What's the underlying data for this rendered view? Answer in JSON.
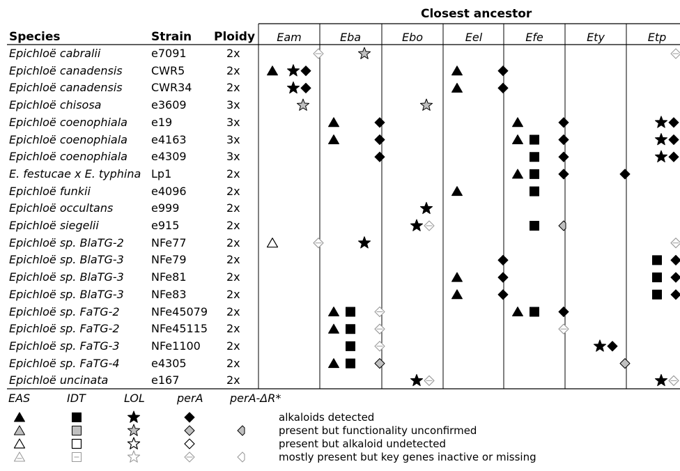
{
  "header": {
    "group_title": "Closest ancestor",
    "species_label": "Species",
    "strain_label": "Strain",
    "ploidy_label": "Ploidy"
  },
  "ancestors": [
    "Eam",
    "Eba",
    "Ebo",
    "Eel",
    "Efe",
    "Ety",
    "Etp"
  ],
  "rows": [
    {
      "species": "Epichloë cabralii",
      "strain": "e7091",
      "ploidy": "2x",
      "cells": {
        "Eam": [
          {
            "t": "diamond",
            "s": "m"
          }
        ],
        "Eba": [
          {
            "t": "star",
            "s": "u"
          }
        ],
        "Etp": [
          {
            "t": "diamond",
            "s": "m"
          }
        ]
      }
    },
    {
      "species": "Epichloë canadensis",
      "strain": "CWR5",
      "ploidy": "2x",
      "cells": {
        "Eam": [
          {
            "t": "tri",
            "s": "d"
          },
          {
            "t": "star",
            "s": "d"
          },
          {
            "t": "diamond",
            "s": "d"
          }
        ],
        "Eel": [
          {
            "t": "tri",
            "s": "d"
          },
          {
            "t": "diamond",
            "s": "d"
          }
        ]
      }
    },
    {
      "species": "Epichloë canadensis",
      "strain": "CWR34",
      "ploidy": "2x",
      "cells": {
        "Eam": [
          {
            "t": "star",
            "s": "d"
          },
          {
            "t": "diamond",
            "s": "d"
          }
        ],
        "Eel": [
          {
            "t": "tri",
            "s": "d"
          },
          {
            "t": "diamond",
            "s": "d"
          }
        ]
      }
    },
    {
      "species": "Epichloë chisosa",
      "strain": "e3609",
      "ploidy": "3x",
      "cells": {
        "Eam": [
          {
            "t": "star",
            "s": "u"
          }
        ],
        "Ebo": [
          {
            "t": "star",
            "s": "u"
          }
        ]
      }
    },
    {
      "species": "Epichloë coenophiala",
      "strain": "e19",
      "ploidy": "3x",
      "cells": {
        "Eba": [
          {
            "t": "tri",
            "s": "d"
          },
          {
            "t": "diamond",
            "s": "d"
          }
        ],
        "Efe": [
          {
            "t": "tri",
            "s": "d"
          },
          {
            "t": "diamond",
            "s": "d"
          }
        ],
        "Etp": [
          {
            "t": "star",
            "s": "d"
          },
          {
            "t": "diamond",
            "s": "d"
          }
        ]
      }
    },
    {
      "species": "Epichloë coenophiala",
      "strain": "e4163",
      "ploidy": "3x",
      "cells": {
        "Eba": [
          {
            "t": "tri",
            "s": "d"
          },
          {
            "t": "diamond",
            "s": "d"
          }
        ],
        "Efe": [
          {
            "t": "tri",
            "s": "d"
          },
          {
            "t": "sq",
            "s": "d"
          },
          {
            "t": "diamond",
            "s": "d"
          }
        ],
        "Etp": [
          {
            "t": "star",
            "s": "d"
          },
          {
            "t": "diamond",
            "s": "d"
          }
        ]
      }
    },
    {
      "species": "Epichloë coenophiala",
      "strain": "e4309",
      "ploidy": "3x",
      "cells": {
        "Eba": [
          {
            "t": "diamond",
            "s": "d"
          }
        ],
        "Efe": [
          {
            "t": "sq",
            "s": "d"
          },
          {
            "t": "diamond",
            "s": "d"
          }
        ],
        "Etp": [
          {
            "t": "star",
            "s": "d"
          },
          {
            "t": "diamond",
            "s": "d"
          }
        ]
      }
    },
    {
      "species": "E. festucae x E. typhina",
      "strain": "Lp1",
      "ploidy": "2x",
      "cells": {
        "Efe": [
          {
            "t": "tri",
            "s": "d"
          },
          {
            "t": "sq",
            "s": "d"
          },
          {
            "t": "diamond",
            "s": "d"
          }
        ],
        "Ety": [
          {
            "t": "diamond",
            "s": "d"
          }
        ]
      }
    },
    {
      "species": "Epichloë funkii",
      "strain": "e4096",
      "ploidy": "2x",
      "cells": {
        "Eel": [
          {
            "t": "tri",
            "s": "d"
          }
        ],
        "Efe": [
          {
            "t": "sq",
            "s": "d"
          }
        ]
      }
    },
    {
      "species": "Epichloë occultans",
      "strain": "e999",
      "ploidy": "2x",
      "cells": {
        "Ebo": [
          {
            "t": "star",
            "s": "d"
          }
        ]
      }
    },
    {
      "species": "Epichloë siegelii",
      "strain": "e915",
      "ploidy": "2x",
      "cells": {
        "Ebo": [
          {
            "t": "star",
            "s": "d"
          },
          {
            "t": "diamond",
            "s": "m"
          }
        ],
        "Efe": [
          {
            "t": "sq",
            "s": "d"
          },
          {
            "t": "pera",
            "s": "u"
          }
        ]
      }
    },
    {
      "species": "Epichloë sp. BlaTG-2",
      "strain": "NFe77",
      "ploidy": "2x",
      "cells": {
        "Eam": [
          {
            "t": "tri",
            "s": "n"
          },
          {
            "t": "diamond",
            "s": "m"
          }
        ],
        "Eba": [
          {
            "t": "star",
            "s": "d"
          }
        ],
        "Etp": [
          {
            "t": "diamond",
            "s": "m"
          }
        ]
      }
    },
    {
      "species": "Epichloë sp. BlaTG-3",
      "strain": "NFe79",
      "ploidy": "2x",
      "cells": {
        "Eel": [
          {
            "t": "diamond",
            "s": "d"
          }
        ],
        "Etp": [
          {
            "t": "sq",
            "s": "d"
          },
          {
            "t": "diamond",
            "s": "d"
          }
        ]
      }
    },
    {
      "species": "Epichloë sp. BlaTG-3",
      "strain": "NFe81",
      "ploidy": "2x",
      "cells": {
        "Eel": [
          {
            "t": "tri",
            "s": "d"
          },
          {
            "t": "diamond",
            "s": "d"
          }
        ],
        "Etp": [
          {
            "t": "sq",
            "s": "d"
          },
          {
            "t": "diamond",
            "s": "d"
          }
        ]
      }
    },
    {
      "species": "Epichloë sp. BlaTG-3",
      "strain": "NFe83",
      "ploidy": "2x",
      "cells": {
        "Eel": [
          {
            "t": "tri",
            "s": "d"
          },
          {
            "t": "diamond",
            "s": "d"
          }
        ],
        "Etp": [
          {
            "t": "sq",
            "s": "d"
          },
          {
            "t": "diamond",
            "s": "d"
          }
        ]
      }
    },
    {
      "species": "Epichloë sp. FaTG-2",
      "strain": "NFe45079",
      "ploidy": "2x",
      "cells": {
        "Eba": [
          {
            "t": "tri",
            "s": "d"
          },
          {
            "t": "sq",
            "s": "d"
          },
          {
            "t": "diamond",
            "s": "m"
          }
        ],
        "Efe": [
          {
            "t": "tri",
            "s": "d"
          },
          {
            "t": "sq",
            "s": "d"
          },
          {
            "t": "diamond",
            "s": "d"
          }
        ]
      }
    },
    {
      "species": "Epichloë sp. FaTG-2",
      "strain": "NFe45115",
      "ploidy": "2x",
      "cells": {
        "Eba": [
          {
            "t": "tri",
            "s": "d"
          },
          {
            "t": "sq",
            "s": "d"
          },
          {
            "t": "diamond",
            "s": "m"
          }
        ],
        "Efe": [
          {
            "t": "diamond",
            "s": "m"
          }
        ]
      }
    },
    {
      "species": "Epichloë sp. FaTG-3",
      "strain": "NFe1100",
      "ploidy": "2x",
      "cells": {
        "Eba": [
          {
            "t": "sq",
            "s": "d"
          },
          {
            "t": "diamond",
            "s": "m"
          }
        ],
        "Ety": [
          {
            "t": "star",
            "s": "d"
          },
          {
            "t": "diamond",
            "s": "d"
          }
        ]
      }
    },
    {
      "species": "Epichloë sp. FaTG-4",
      "strain": "e4305",
      "ploidy": "2x",
      "cells": {
        "Eba": [
          {
            "t": "tri",
            "s": "d"
          },
          {
            "t": "sq",
            "s": "d"
          },
          {
            "t": "diamond",
            "s": "u"
          }
        ],
        "Ety": [
          {
            "t": "diamond",
            "s": "u"
          }
        ]
      }
    },
    {
      "species": "Epichloë uncinata",
      "strain": "e167",
      "ploidy": "2x",
      "cells": {
        "Ebo": [
          {
            "t": "star",
            "s": "d"
          },
          {
            "t": "diamond",
            "s": "m"
          }
        ],
        "Etp": [
          {
            "t": "star",
            "s": "d"
          },
          {
            "t": "diamond",
            "s": "m"
          }
        ]
      }
    }
  ],
  "legend": {
    "columns": [
      "EAS",
      "IDT",
      "LOL",
      "perA",
      "perA-ΔR*"
    ],
    "descriptions": [
      "alkaloids detected",
      "present but functionality unconfirmed",
      "present but alkaloid undetected",
      "mostly present but key genes inactive or missing"
    ]
  },
  "colors": {
    "detected": "#000000",
    "unconfirmed_fill": "#c0c0c0",
    "missing_stroke": "#9a9a9a"
  }
}
